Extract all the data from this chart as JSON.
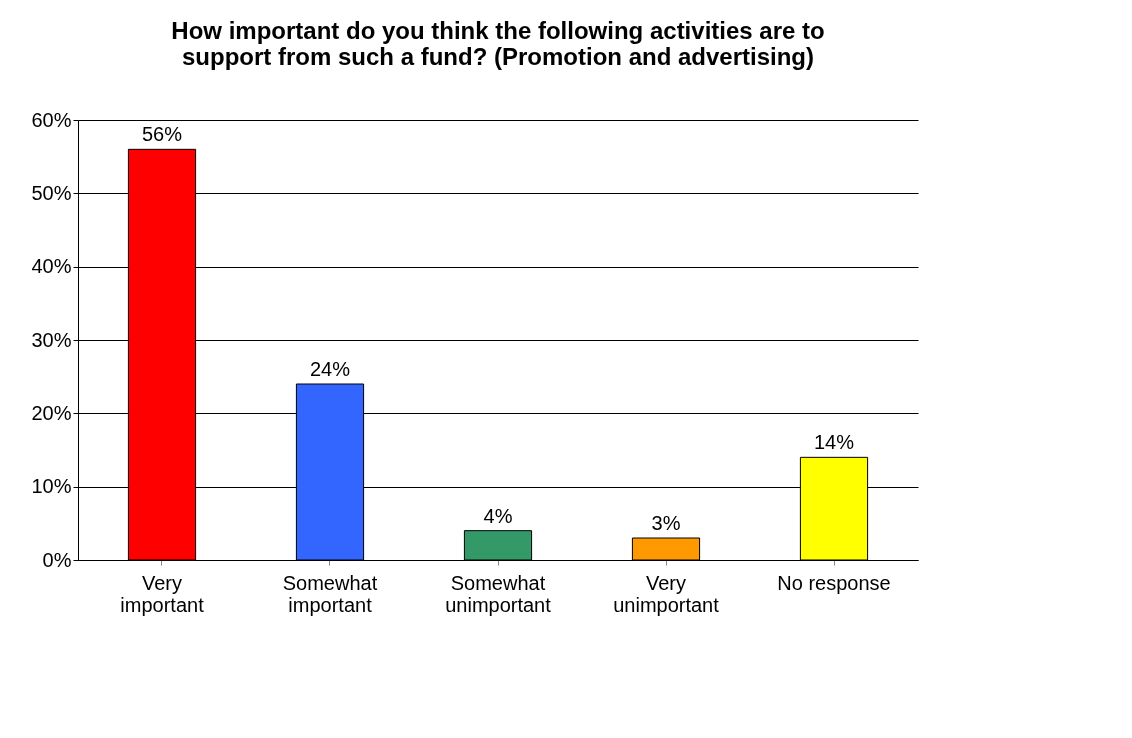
{
  "chart_data": {
    "type": "bar",
    "title": "How important do you think the following activities are to support from such a fund? (Promotion and advertising)",
    "categories": [
      "Very important",
      "Somewhat important",
      "Somewhat unimportant",
      "Very unimportant",
      "No response"
    ],
    "values": [
      56,
      24,
      4,
      3,
      14
    ],
    "colors": [
      "#ff0000",
      "#3366ff",
      "#339966",
      "#ff9900",
      "#ffff00"
    ],
    "value_labels": [
      "56%",
      "24%",
      "4%",
      "3%",
      "14%"
    ],
    "ylim": [
      0,
      60
    ],
    "yticks": [
      {
        "value": 0,
        "label": "0%"
      },
      {
        "value": 10,
        "label": "10%"
      },
      {
        "value": 20,
        "label": "20%"
      },
      {
        "value": 30,
        "label": "30%"
      },
      {
        "value": 40,
        "label": "40%"
      },
      {
        "value": 50,
        "label": "50%"
      },
      {
        "value": 60,
        "label": "60%"
      }
    ],
    "grid": "y"
  }
}
